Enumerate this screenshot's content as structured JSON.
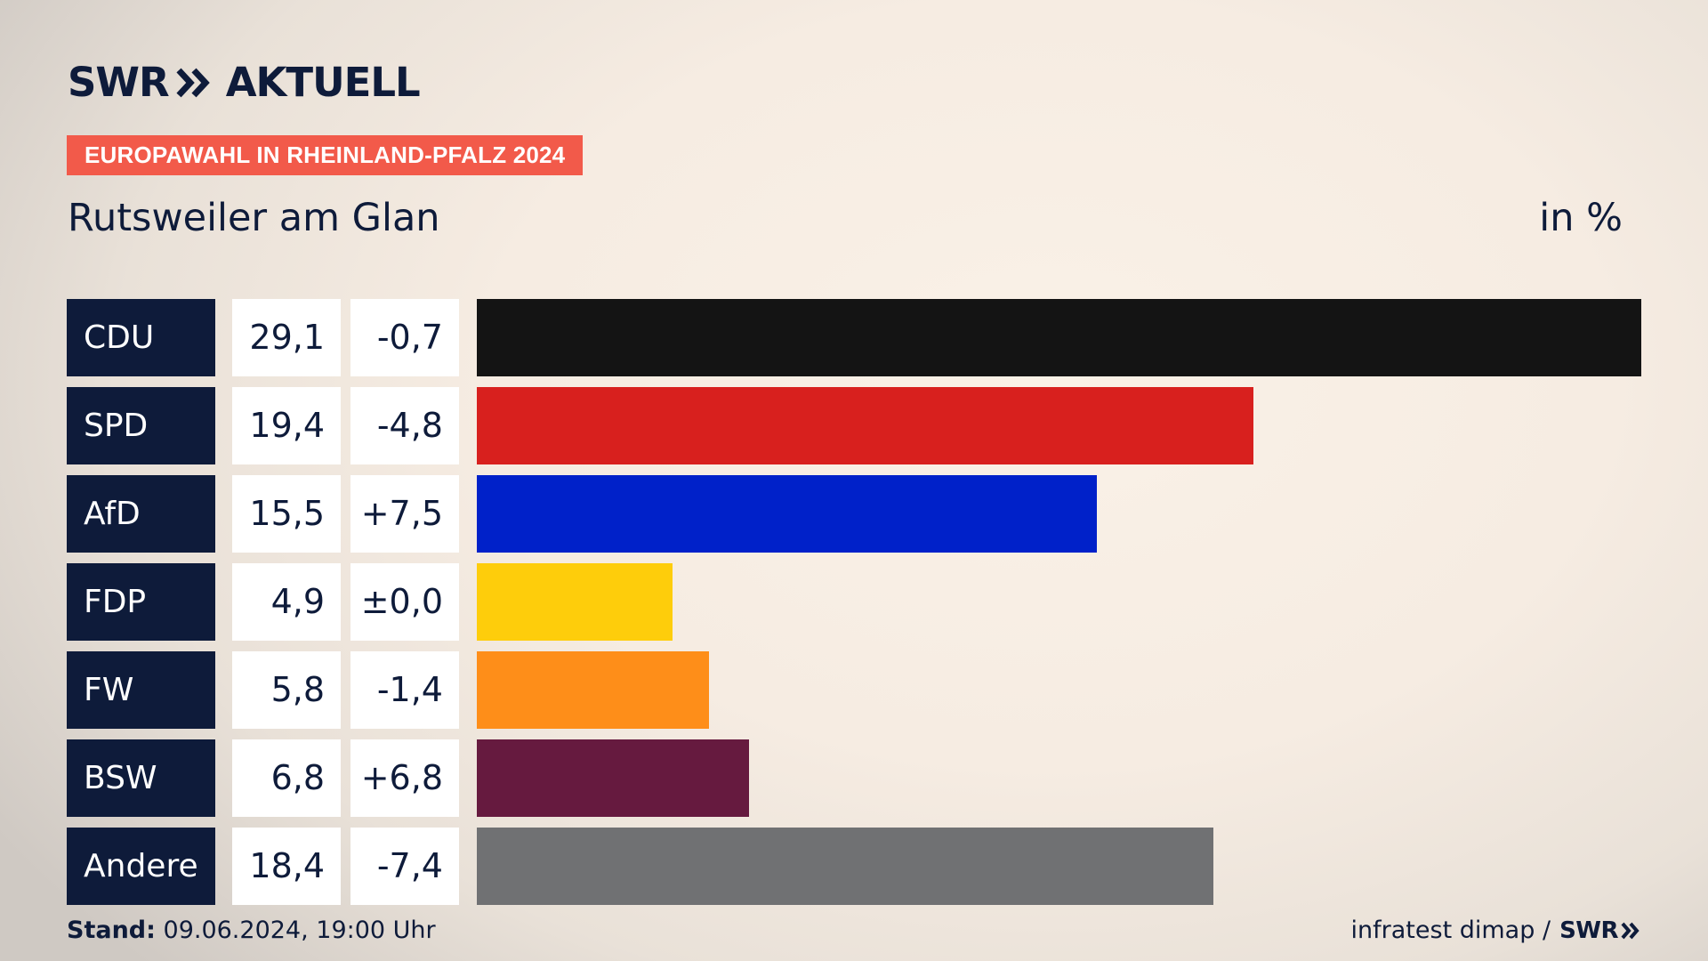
{
  "brand": {
    "logo_text": "SWR",
    "logo_suffix": "AKTUELL",
    "footer_logo_text": "SWR"
  },
  "header": {
    "tag": "EUROPAWAHL IN RHEINLAND-PFALZ 2024",
    "title": "Rutsweiler am Glan",
    "unit": "in %"
  },
  "footer": {
    "stand_label": "Stand:",
    "stand_value": "09.06.2024, 19:00 Uhr",
    "source": "infratest dimap /"
  },
  "chart_data": {
    "type": "bar",
    "orientation": "horizontal",
    "unit": "in %",
    "categories": [
      "CDU",
      "SPD",
      "AfD",
      "FDP",
      "FW",
      "BSW",
      "Andere"
    ],
    "values": [
      29.1,
      19.4,
      15.5,
      4.9,
      5.8,
      6.8,
      18.4
    ],
    "value_labels": [
      "29,1",
      "19,4",
      "15,5",
      "4,9",
      "5,8",
      "6,8",
      "18,4"
    ],
    "change_labels": [
      "-0,7",
      "-4,8",
      "+7,5",
      "±0,0",
      "-1,4",
      "+6,8",
      "-7,4"
    ],
    "colors": [
      "#141414",
      "#d8201e",
      "#0021c9",
      "#fecd0b",
      "#fe8e19",
      "#661a3f",
      "#707173"
    ]
  }
}
